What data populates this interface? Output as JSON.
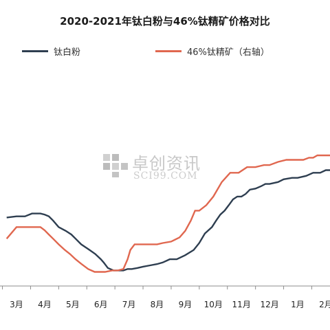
{
  "chart_data": {
    "type": "line",
    "title": "2020-2021年钛白粉与46%钛精矿价格对比",
    "xlabel": "",
    "ylabel": "",
    "categories": [
      "3月",
      "4月",
      "5月",
      "6月",
      "7月",
      "8月",
      "9月",
      "10月",
      "11月",
      "12月",
      "1月",
      "2月"
    ],
    "legend_position": "top",
    "grid": false,
    "ylim": [
      0,
      100
    ],
    "y2lim": [
      0,
      100
    ],
    "series": [
      {
        "name": "钛白粉",
        "axis": "left",
        "color": "#2e3e50",
        "x": [
          -0.35,
          0.0,
          0.3,
          0.55,
          0.72,
          0.85,
          1.0,
          1.15,
          1.3,
          1.5,
          1.75,
          1.95,
          2.1,
          2.3,
          2.6,
          2.8,
          3.0,
          3.1,
          3.25,
          3.45,
          3.6,
          3.8,
          3.95,
          4.1,
          4.3,
          4.5,
          4.75,
          5.0,
          5.2,
          5.45,
          5.7,
          6.0,
          6.3,
          6.5,
          6.7,
          6.95,
          7.1,
          7.25,
          7.4,
          7.55,
          7.7,
          7.85,
          8.0,
          8.15,
          8.3,
          8.5,
          8.7,
          8.85,
          9.0,
          9.3,
          9.5,
          9.8,
          10.0,
          10.3,
          10.55,
          10.8,
          11.0,
          11.25
        ],
        "values": [
          52.4,
          53.3,
          53.3,
          55.5,
          55.5,
          55.5,
          54.7,
          53.3,
          50.1,
          45.1,
          42.2,
          39.4,
          36.2,
          31.9,
          27.6,
          24.5,
          20.5,
          18.0,
          13.8,
          11.9,
          11.9,
          11.9,
          13.0,
          13.0,
          13.8,
          14.8,
          15.8,
          16.8,
          18.0,
          20.5,
          20.5,
          23.6,
          27.6,
          32.9,
          40.2,
          45.1,
          50.1,
          54.7,
          57.7,
          61.9,
          66.3,
          68.5,
          68.5,
          70.5,
          73.8,
          74.6,
          76.4,
          78.1,
          78.1,
          79.6,
          81.7,
          82.8,
          82.8,
          84.3,
          86.7,
          86.7,
          88.7,
          88.7
        ]
      },
      {
        "name": "46%钛精矿（右轴）",
        "axis": "right",
        "color": "#e0674f",
        "x": [
          -0.35,
          0.0,
          0.3,
          0.5,
          0.72,
          0.85,
          1.0,
          1.15,
          1.3,
          1.5,
          1.72,
          1.9,
          2.1,
          2.3,
          2.55,
          2.78,
          3.0,
          3.15,
          3.4,
          3.6,
          3.8,
          3.95,
          4.05,
          4.2,
          4.4,
          4.6,
          4.8,
          5.0,
          5.2,
          5.5,
          5.8,
          6.0,
          6.2,
          6.35,
          6.5,
          6.75,
          7.0,
          7.3,
          7.6,
          7.9,
          8.2,
          8.5,
          8.8,
          9.0,
          9.3,
          9.6,
          9.9,
          10.2,
          10.4,
          10.55,
          10.7,
          10.9,
          11.0,
          11.25
        ],
        "values": [
          36.2,
          45.1,
          45.1,
          45.1,
          45.1,
          45.1,
          42.7,
          39.4,
          36.2,
          31.9,
          27.6,
          24.5,
          20.5,
          17.0,
          13.0,
          10.8,
          10.8,
          10.8,
          11.9,
          11.9,
          13.0,
          20.5,
          27.6,
          31.9,
          31.9,
          31.9,
          31.9,
          31.9,
          32.9,
          34.0,
          37.2,
          42.2,
          50.1,
          57.7,
          57.7,
          61.9,
          68.5,
          79.6,
          86.7,
          86.7,
          91.0,
          91.0,
          92.6,
          92.6,
          95.0,
          96.6,
          96.6,
          96.6,
          98.2,
          98.2,
          100.0,
          100.0,
          100.0,
          100.0
        ]
      }
    ]
  },
  "watermark": {
    "text_cn": "卓创资讯",
    "text_en": "SCI99.COM",
    "icon": "sci99-logo-icon"
  }
}
